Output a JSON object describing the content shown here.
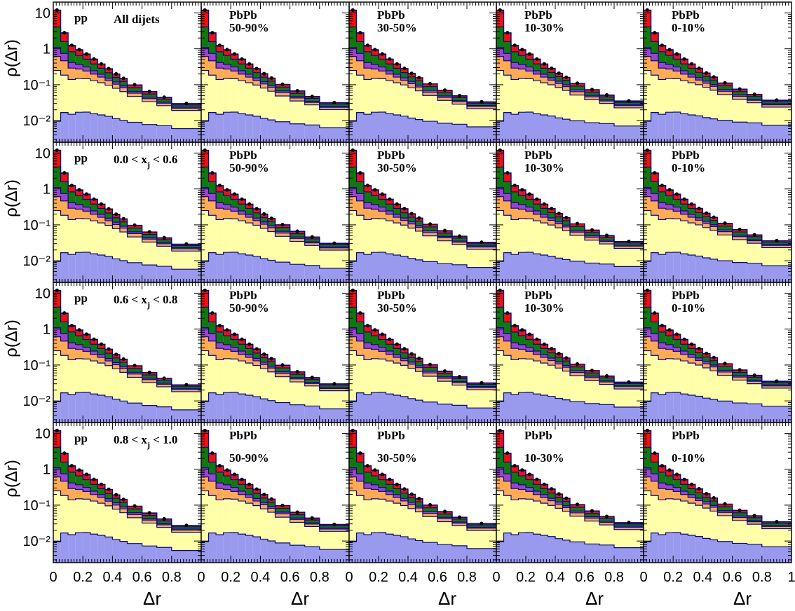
{
  "chart_data": {
    "type": "bar",
    "layout": "stacked-histogram-grid",
    "rows": 4,
    "cols": 5,
    "log_y": true,
    "grid": false,
    "xlabel": "Δr",
    "ylabel": "ρ(Δr)",
    "xlim": [
      0,
      1
    ],
    "ylim": [
      0.0025,
      20
    ],
    "x_tick_labels": [
      "0",
      "0.2",
      "0.4",
      "0.6",
      "0.8",
      "1"
    ],
    "y_tick_labels": [
      "10⁻²",
      "10⁻¹",
      "1",
      "10"
    ],
    "bin_edges": [
      0,
      0.05,
      0.1,
      0.15,
      0.2,
      0.25,
      0.3,
      0.35,
      0.4,
      0.45,
      0.5,
      0.6,
      0.7,
      0.8,
      1.0
    ],
    "stack_colors": [
      "#9999ee",
      "#ffffaa",
      "#ffaa55",
      "#9944cc",
      "#117711",
      "#ee1111",
      "#111188"
    ],
    "row_labels": [
      {
        "system": "pp",
        "selection": "All dijets"
      },
      {
        "system": "pp",
        "selection": "0.0 < x",
        "sub": "j",
        "suffix": " < 0.6"
      },
      {
        "system": "pp",
        "selection": "0.6 < x",
        "sub": "j",
        "suffix": " < 0.8"
      },
      {
        "system": "pp",
        "selection": "0.8 < x",
        "sub": "j",
        "suffix": " < 1.0"
      }
    ],
    "col_labels": [
      "",
      "50-90%",
      "30-50%",
      "10-30%",
      "0-10%"
    ],
    "col_systems": [
      "pp",
      "PbPb",
      "PbPb",
      "PbPb",
      "PbPb"
    ],
    "total_bins": [
      12,
      2.8,
      1.25,
      0.95,
      0.72,
      0.52,
      0.38,
      0.28,
      0.2,
      0.15,
      0.1,
      0.065,
      0.045,
      0.03
    ],
    "stack_fractions": [
      [
        0.0008,
        0.006,
        0.012,
        0.018,
        0.024,
        0.03,
        0.038,
        0.047,
        0.057,
        0.068,
        0.09,
        0.12,
        0.16,
        0.2
      ],
      [
        0.02,
        0.06,
        0.1,
        0.14,
        0.18,
        0.22,
        0.26,
        0.3,
        0.34,
        0.36,
        0.38,
        0.4,
        0.42,
        0.44
      ],
      [
        0.03,
        0.1,
        0.12,
        0.13,
        0.13,
        0.13,
        0.13,
        0.12,
        0.12,
        0.12,
        0.11,
        0.11,
        0.1,
        0.1
      ],
      [
        0.04,
        0.1,
        0.1,
        0.1,
        0.1,
        0.09,
        0.09,
        0.08,
        0.08,
        0.07,
        0.07,
        0.06,
        0.05,
        0.05
      ],
      [
        0.25,
        0.3,
        0.33,
        0.3,
        0.28,
        0.26,
        0.24,
        0.22,
        0.2,
        0.2,
        0.18,
        0.16,
        0.15,
        0.12
      ],
      [
        0.64,
        0.41,
        0.3,
        0.27,
        0.25,
        0.24,
        0.22,
        0.21,
        0.19,
        0.17,
        0.15,
        0.13,
        0.1,
        0.07
      ],
      [
        0.019,
        0.024,
        0.038,
        0.042,
        0.042,
        0.04,
        0.032,
        0.023,
        0.013,
        0.013,
        0.012,
        0.02,
        0.02,
        0.02
      ]
    ]
  }
}
